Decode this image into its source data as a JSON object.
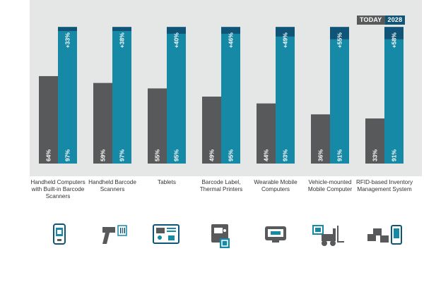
{
  "legend": {
    "today": "TODAY",
    "future": "2028"
  },
  "colors": {
    "today_bar": "#58595b",
    "future_bar": "#1589a6",
    "growth_bar": "#0f5577",
    "legend_today": "#58595b",
    "legend_future": "#0f5577",
    "label_text": "#ffffff"
  },
  "chart_data": {
    "type": "bar",
    "categories": [
      "Handheld Computers with Built-in Barcode Scanners",
      "Handheld Barcode Scanners",
      "Tablets",
      "Barcode Label, Thermal Printers",
      "Wearable Mobile Computers",
      "Vehicle-mounted Mobile Computer",
      "RFID-based Inventory Management System"
    ],
    "series": [
      {
        "name": "TODAY",
        "values": [
          64,
          59,
          55,
          49,
          44,
          36,
          33
        ],
        "labels": [
          "64%",
          "59%",
          "55%",
          "49%",
          "44%",
          "36%",
          "33%"
        ]
      },
      {
        "name": "2028",
        "values": [
          97,
          97,
          95,
          95,
          93,
          91,
          91
        ],
        "labels": [
          "97%",
          "97%",
          "95%",
          "95%",
          "93%",
          "91%",
          "91%"
        ]
      }
    ],
    "growth_labels": [
      "+33%",
      "+38%",
      "+40%",
      "+46%",
      "+49%",
      "+55%",
      "+58%"
    ],
    "ylim": [
      0,
      100
    ]
  },
  "icons": [
    "handheld-computer-icon",
    "barcode-scanner-icon",
    "tablet-icon",
    "label-printer-icon",
    "wearable-computer-icon",
    "forklift-icon",
    "rfid-inventory-icon"
  ]
}
